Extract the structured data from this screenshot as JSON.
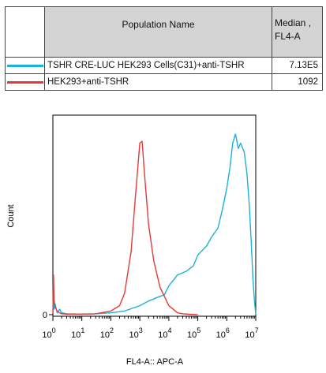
{
  "table": {
    "header_name": "Population Name",
    "header_median_line1": "Median ,",
    "header_median_line2": "FL4-A",
    "rows": [
      {
        "color": "#1ab2d8",
        "name": "TSHR CRE-LUC HEK293 Cells(C31)+anti-TSHR",
        "median": "7.13E5"
      },
      {
        "color": "#e53a3a",
        "name": "HEK293+anti-TSHR",
        "median": "1092"
      }
    ]
  },
  "chart_data": {
    "type": "line",
    "title": "",
    "xlabel": "FL4-A:: APC-A",
    "ylabel": "Count",
    "x_scale": "log10",
    "xlim": [
      1,
      10000000
    ],
    "ylim": [
      0,
      100
    ],
    "x_tick_labels": [
      "10 0",
      "10 1",
      "10 2",
      "10 3",
      "10 4",
      "10 5",
      "10 6",
      "10 7"
    ],
    "x_tick_exponents": [
      0,
      1,
      2,
      3,
      4,
      5,
      6,
      7
    ],
    "y_tick_labels": [
      "0"
    ],
    "grid": false,
    "legend": "table above plot",
    "series": [
      {
        "color": "#1ab2d8",
        "x": [
          1,
          1.05,
          1.1,
          1.2,
          1.4,
          1.7,
          2,
          3,
          5,
          10,
          30,
          100,
          300,
          1000,
          2000,
          4000,
          7000,
          10000,
          20000,
          40000,
          70000,
          100000,
          200000,
          300000,
          500000,
          700000,
          1000000,
          1300000,
          1600000,
          2000000,
          2500000,
          3000000,
          4000000,
          5000000,
          6000000,
          7000000,
          8000000,
          9000000,
          10000000
        ],
        "y": [
          0,
          8,
          3,
          6,
          1,
          3,
          1,
          0.5,
          0.4,
          0.3,
          0.5,
          1,
          2,
          5,
          7.5,
          9.5,
          11,
          16,
          22,
          24,
          27,
          33,
          38,
          43,
          48,
          58,
          70,
          82,
          95,
          100,
          92,
          95,
          90,
          78,
          60,
          40,
          20,
          8,
          0
        ]
      },
      {
        "color": "#e53a3a",
        "x": [
          1,
          1.05,
          1.1,
          1.2,
          1.4,
          1.7,
          2,
          3,
          10,
          30,
          100,
          200,
          300,
          500,
          700,
          1000,
          1200,
          1500,
          2000,
          3000,
          5000,
          10000,
          20000,
          30000,
          50000,
          100000
        ],
        "y": [
          0,
          22,
          8,
          4,
          2,
          1,
          0.5,
          0.3,
          0.3,
          0.5,
          2,
          5,
          12,
          35,
          65,
          95,
          96,
          75,
          50,
          30,
          15,
          5,
          1,
          0.5,
          0.2,
          0
        ]
      }
    ]
  }
}
